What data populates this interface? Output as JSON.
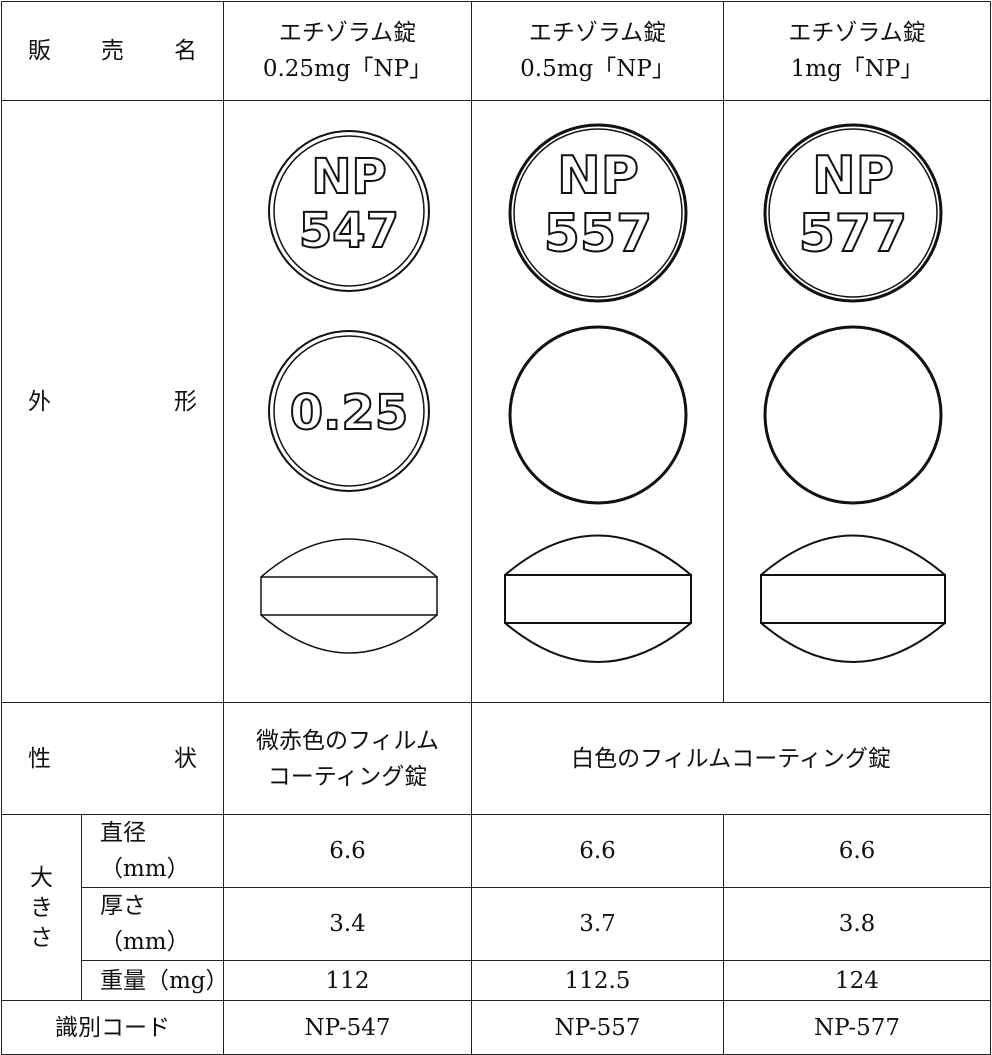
{
  "table": {
    "header": {
      "label": "販売名",
      "products": [
        [
          "エチゾラム錠",
          "0.25mg「NP」"
        ],
        [
          "エチゾラム錠",
          "0.5mg「NP」"
        ],
        [
          "エチゾラム錠",
          "1mg「NP」"
        ]
      ]
    },
    "appearance": {
      "label": "外形",
      "tablets": [
        {
          "front": [
            "NP",
            "547"
          ],
          "back": "0.25"
        },
        {
          "front": [
            "NP",
            "557"
          ]
        },
        {
          "front": [
            "NP",
            "577"
          ]
        }
      ]
    },
    "description": {
      "label": "性状",
      "values": [
        [
          "微赤色のフィルム",
          "コーティング錠"
        ],
        "白色のフィルムコーティング錠"
      ]
    },
    "size": {
      "label": "大きさ",
      "rows": [
        {
          "label": "直径（mm）",
          "values": [
            "6.6",
            "6.6",
            "6.6"
          ]
        },
        {
          "label": "厚さ（mm）",
          "values": [
            "3.4",
            "3.7",
            "3.8"
          ]
        },
        {
          "label": "重量（mg）",
          "values": [
            "112",
            "112.5",
            "124"
          ]
        }
      ]
    },
    "code": {
      "label": "識別コード",
      "values": [
        "NP-547",
        "NP-557",
        "NP-577"
      ]
    }
  }
}
